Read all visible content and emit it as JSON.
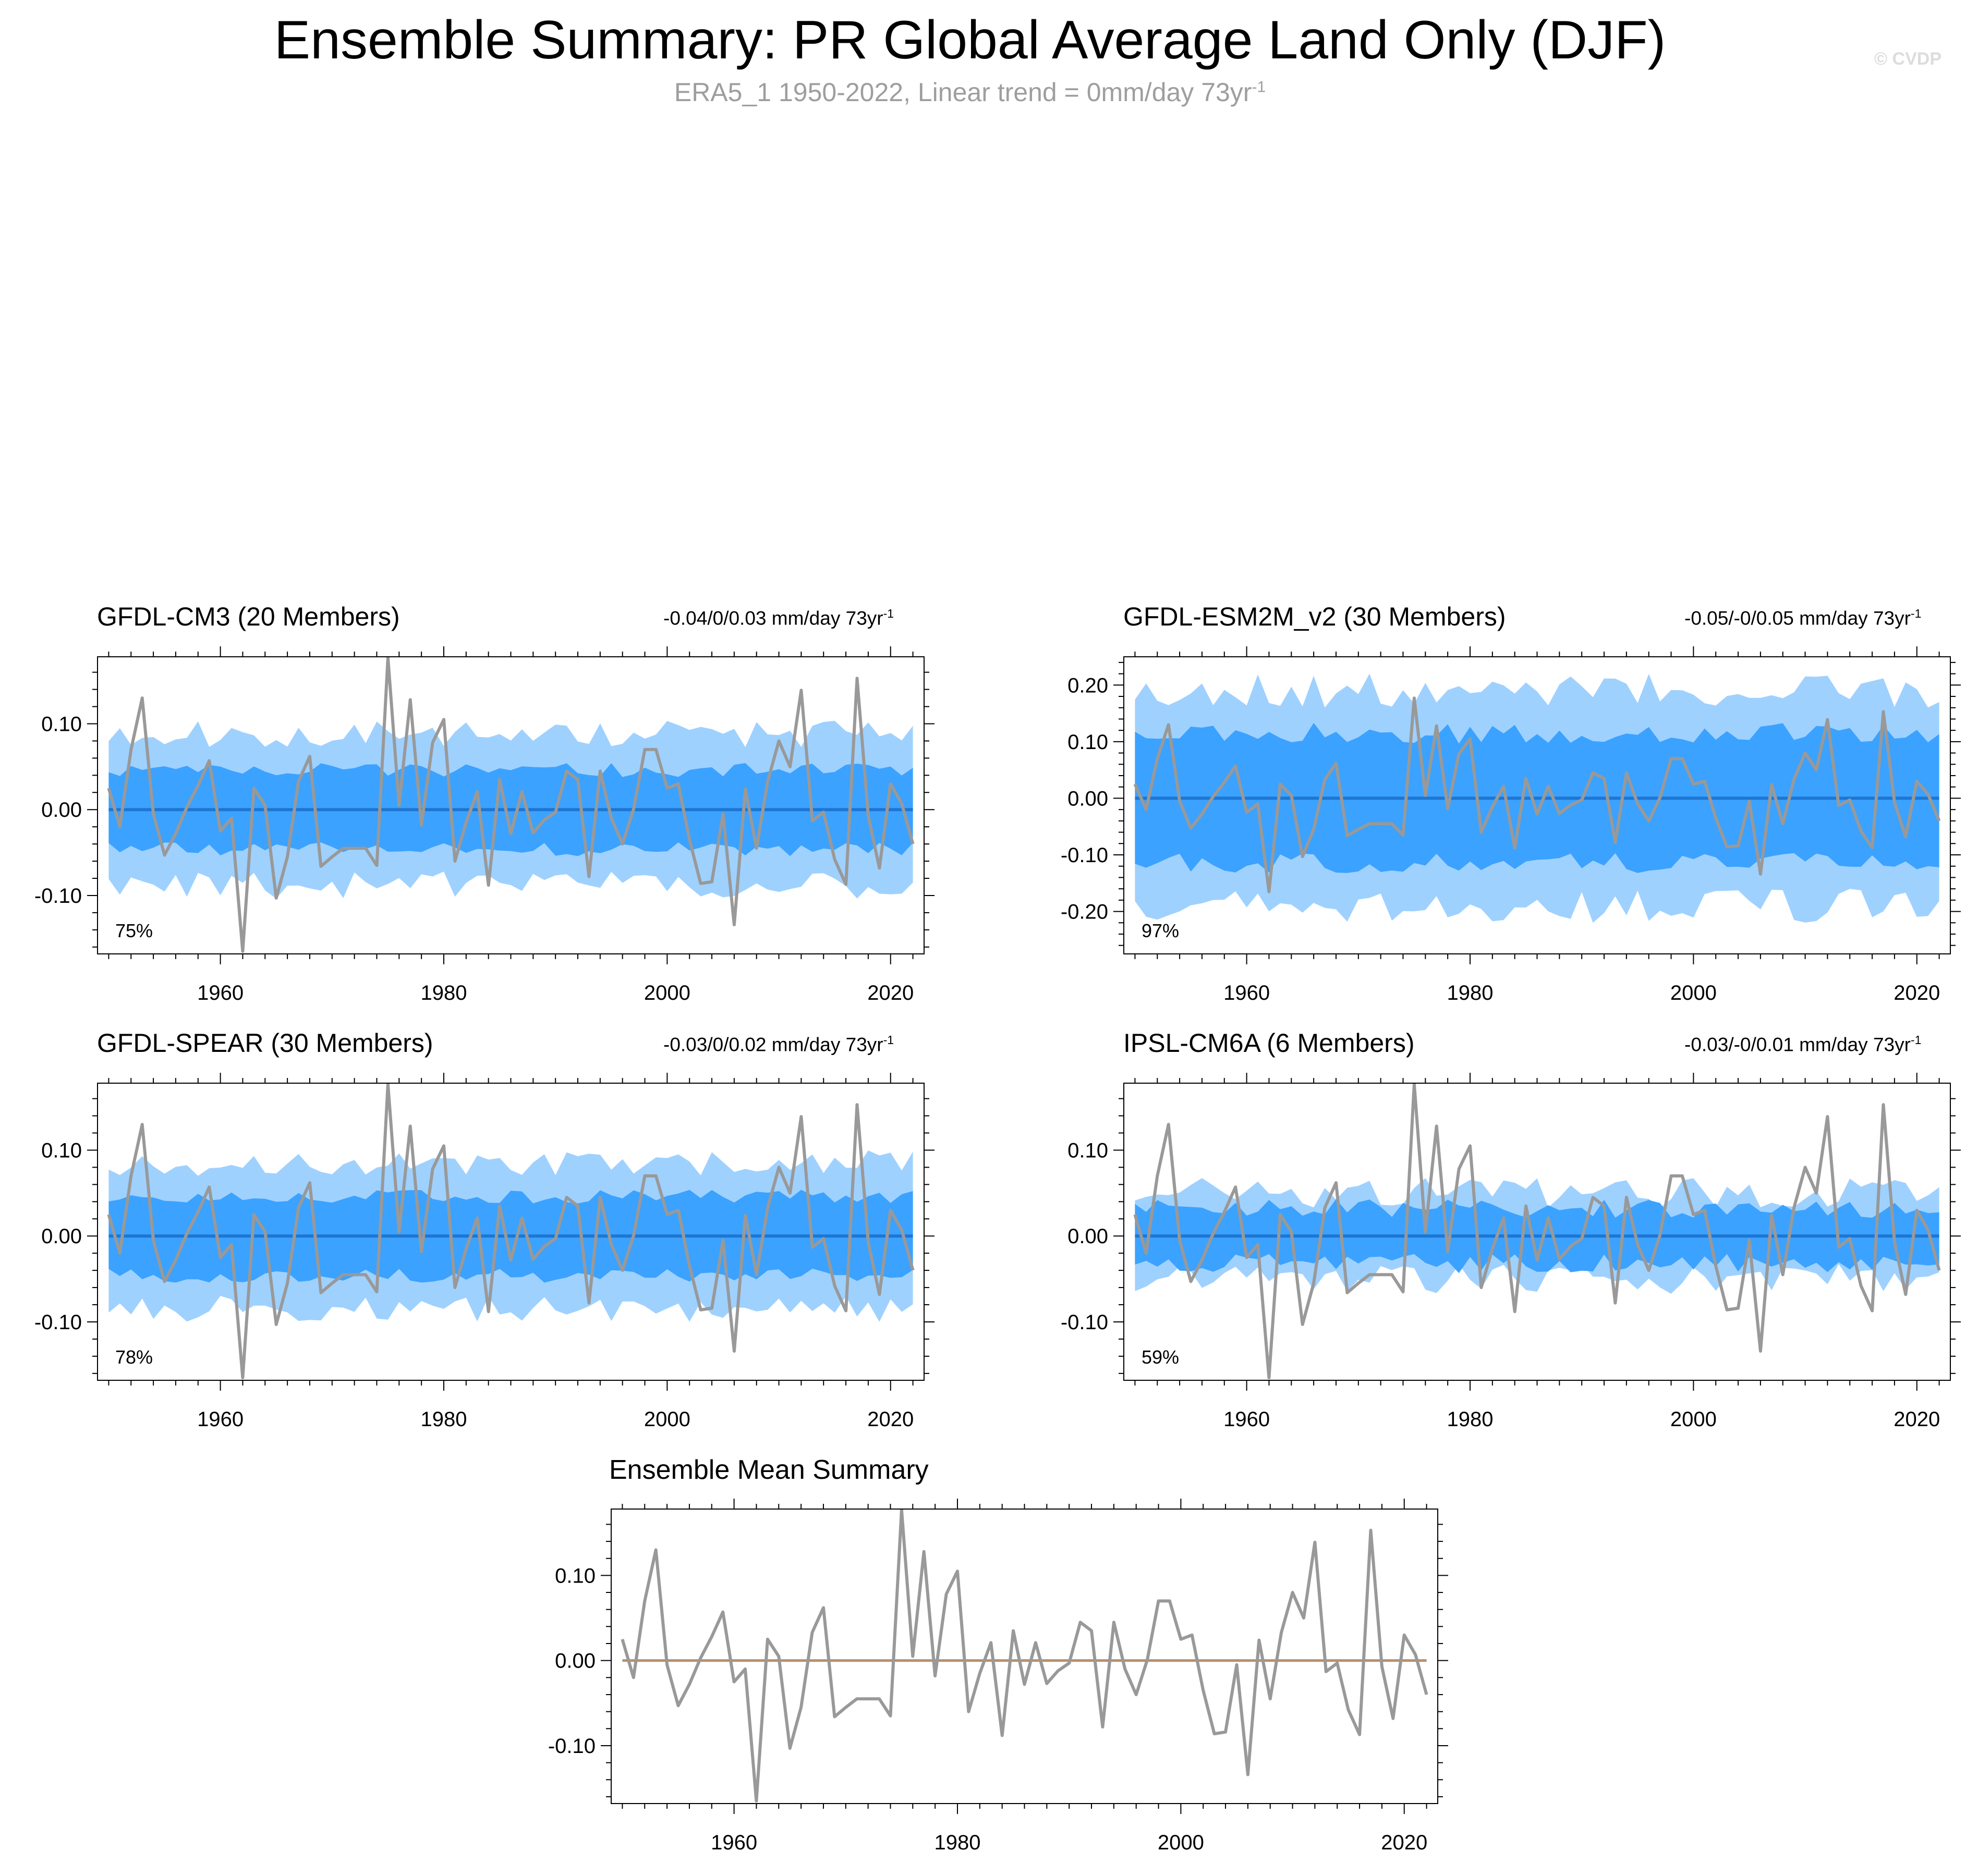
{
  "title": "Ensemble Summary: PR Global Average Land Only (DJF)",
  "subtitle_main": "ERA5_1 1950-2022, Linear trend = 0mm/day 73yr",
  "subtitle_sup": "-1",
  "copyright": "© CVDP",
  "colors": {
    "outer_band": "#9fd1ff",
    "inner_band": "#3ba2ff",
    "mean_line": "#1e76d2",
    "obs_line": "#999999",
    "mean_summary_line": "#b8906a"
  },
  "observations": {
    "name": "ERA5_1",
    "years": [
      1950,
      2022
    ],
    "values": [
      0.025,
      -0.02,
      0.07,
      0.13,
      -0.005,
      -0.053,
      -0.028,
      0.003,
      0.028,
      0.057,
      -0.025,
      -0.01,
      -0.165,
      0.025,
      0.005,
      -0.103,
      -0.055,
      0.033,
      0.062,
      -0.066,
      -0.055,
      -0.045,
      -0.045,
      -0.045,
      -0.065,
      0.177,
      0.005,
      0.128,
      -0.018,
      0.078,
      0.105,
      -0.06,
      -0.015,
      0.021,
      -0.088,
      0.035,
      -0.028,
      0.021,
      -0.027,
      -0.012,
      -0.003,
      0.045,
      0.035,
      -0.078,
      0.045,
      -0.01,
      -0.04,
      0.001,
      0.07,
      0.07,
      0.025,
      0.03,
      -0.035,
      -0.086,
      -0.084,
      -0.005,
      -0.134,
      0.024,
      -0.045,
      0.033,
      0.08,
      0.05,
      0.139,
      -0.013,
      -0.003,
      -0.058,
      -0.087,
      0.153,
      -0.007,
      -0.068,
      0.03,
      0.007,
      -0.04
    ]
  },
  "panels": [
    {
      "title": "GFDL-CM3 (20 Members)",
      "title_color": "#c8c070",
      "trend_main": "-0.04/0/0.03 mm/day 73yr",
      "trend_sup": "-1",
      "percent": "75%",
      "ylim": [
        -0.168,
        0.178
      ],
      "yticks": [
        -0.1,
        0.0,
        0.1
      ],
      "ytick_labels": [
        "-0.10",
        "0.00",
        "0.10"
      ],
      "band_seed": 11,
      "outer_amp": 0.088,
      "inner_amp": 0.046,
      "var_amp": 0.18
    },
    {
      "title": "GFDL-ESM2M_v2 (30 Members)",
      "title_color": "#8b4513",
      "trend_main": "-0.05/-0/0.05 mm/day 73yr",
      "trend_sup": "-1",
      "percent": "97%",
      "ylim": [
        -0.275,
        0.25
      ],
      "yticks": [
        -0.2,
        -0.1,
        0.0,
        0.1,
        0.2
      ],
      "ytick_labels": [
        "-0.20",
        "-0.10",
        "0.00",
        "0.10",
        "0.20"
      ],
      "band_seed": 23,
      "outer_amp": 0.19,
      "inner_amp": 0.115,
      "var_amp": 0.16
    },
    {
      "title": "GFDL-SPEAR (30 Members)",
      "title_color": "#8a5fd0",
      "trend_main": "-0.03/0/0.02 mm/day 73yr",
      "trend_sup": "-1",
      "percent": "78%",
      "ylim": [
        -0.168,
        0.178
      ],
      "yticks": [
        -0.1,
        0.0,
        0.1
      ],
      "ytick_labels": [
        "-0.10",
        "0.00",
        "0.10"
      ],
      "band_seed": 37,
      "outer_amp": 0.085,
      "inner_amp": 0.046,
      "var_amp": 0.18
    },
    {
      "title": "IPSL-CM6A (6 Members)",
      "title_color": "#d0ac7c",
      "trend_main": "-0.03/-0/0.01 mm/day 73yr",
      "trend_sup": "-1",
      "percent": "59%",
      "ylim": [
        -0.168,
        0.178
      ],
      "yticks": [
        -0.1,
        0.0,
        0.1
      ],
      "ytick_labels": [
        "-0.10",
        "0.00",
        "0.10"
      ],
      "band_seed": 51,
      "outer_amp": 0.05,
      "inner_amp": 0.032,
      "var_amp": 0.35
    }
  ],
  "mean_panel": {
    "title": "Ensemble Mean Summary",
    "ylim": [
      -0.168,
      0.178
    ],
    "yticks": [
      -0.1,
      0.0,
      0.1
    ],
    "ytick_labels": [
      "-0.10",
      "0.00",
      "0.10"
    ]
  },
  "x_axis": {
    "range": [
      1949,
      2023
    ],
    "ticks": [
      1960,
      1980,
      2000,
      2020
    ],
    "tick_labels": [
      "1960",
      "1980",
      "2000",
      "2020"
    ]
  },
  "chart_data": [
    {
      "type": "area",
      "title": "GFDL-CM3 (20 Members)",
      "xlabel": "",
      "ylabel": "",
      "series": [
        {
          "name": "ERA5_1"
        }
      ]
    },
    {
      "type": "area",
      "title": "GFDL-ESM2M_v2 (30 Members)",
      "xlabel": "",
      "ylabel": "",
      "series": [
        {
          "name": "ERA5_1"
        }
      ]
    },
    {
      "type": "area",
      "title": "GFDL-SPEAR (30 Members)",
      "xlabel": "",
      "ylabel": "",
      "series": [
        {
          "name": "ERA5_1"
        }
      ]
    },
    {
      "type": "area",
      "title": "IPSL-CM6A (6 Members)",
      "xlabel": "",
      "ylabel": "",
      "series": [
        {
          "name": "ERA5_1"
        }
      ]
    },
    {
      "type": "line",
      "title": "Ensemble Mean Summary",
      "xlabel": "",
      "ylabel": "",
      "series": [
        {
          "name": "ERA5_1"
        }
      ]
    }
  ]
}
